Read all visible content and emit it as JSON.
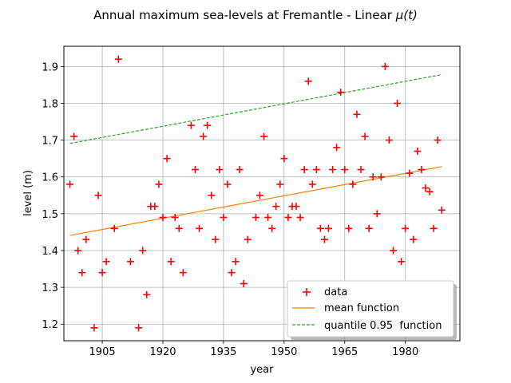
{
  "chart_data": {
    "type": "scatter",
    "title": "Annual maximum sea-levels at Fremantle - Linear",
    "title_math": "μ(t)",
    "xlabel": "year",
    "ylabel": "level (m)",
    "xlim": [
      1895.5,
      1993.5
    ],
    "ylim": [
      1.155,
      1.955
    ],
    "xticks": [
      1905,
      1920,
      1935,
      1950,
      1965,
      1980
    ],
    "yticks": [
      1.2,
      1.3,
      1.4,
      1.5,
      1.6,
      1.7,
      1.8,
      1.9
    ],
    "grid": true,
    "legend_position": "lower-right",
    "series": [
      {
        "name": "data",
        "kind": "scatter",
        "marker": "plus",
        "color": "#ff0000",
        "x": [
          1897,
          1898,
          1899,
          1900,
          1901,
          1903,
          1904,
          1905,
          1906,
          1908,
          1909,
          1912,
          1914,
          1915,
          1916,
          1917,
          1918,
          1919,
          1920,
          1921,
          1922,
          1923,
          1924,
          1925,
          1927,
          1928,
          1929,
          1930,
          1931,
          1932,
          1933,
          1934,
          1935,
          1936,
          1937,
          1938,
          1939,
          1940,
          1941,
          1943,
          1944,
          1945,
          1946,
          1947,
          1948,
          1949,
          1950,
          1951,
          1952,
          1953,
          1954,
          1955,
          1956,
          1957,
          1958,
          1959,
          1960,
          1961,
          1962,
          1963,
          1964,
          1965,
          1966,
          1967,
          1968,
          1969,
          1970,
          1971,
          1972,
          1973,
          1974,
          1975,
          1976,
          1977,
          1978,
          1979,
          1980,
          1981,
          1982,
          1983,
          1984,
          1985,
          1986,
          1987,
          1988,
          1989
        ],
        "y": [
          1.58,
          1.71,
          1.4,
          1.34,
          1.43,
          1.19,
          1.55,
          1.34,
          1.37,
          1.46,
          1.92,
          1.37,
          1.19,
          1.4,
          1.28,
          1.52,
          1.52,
          1.58,
          1.49,
          1.65,
          1.37,
          1.49,
          1.46,
          1.34,
          1.74,
          1.62,
          1.46,
          1.71,
          1.74,
          1.55,
          1.43,
          1.62,
          1.49,
          1.58,
          1.34,
          1.37,
          1.62,
          1.31,
          1.43,
          1.49,
          1.55,
          1.71,
          1.49,
          1.46,
          1.52,
          1.58,
          1.65,
          1.49,
          1.52,
          1.52,
          1.49,
          1.62,
          1.86,
          1.58,
          1.62,
          1.46,
          1.43,
          1.46,
          1.62,
          1.68,
          1.83,
          1.62,
          1.46,
          1.58,
          1.77,
          1.62,
          1.71,
          1.46,
          1.6,
          1.5,
          1.6,
          1.9,
          1.7,
          1.4,
          1.8,
          1.37,
          1.46,
          1.61,
          1.43,
          1.67,
          1.62,
          1.57,
          1.56,
          1.46,
          1.7,
          1.51
        ]
      },
      {
        "name": "mean function",
        "kind": "line",
        "style": "solid",
        "color": "#ff7f0e",
        "x": [
          1897,
          1989
        ],
        "y": [
          1.441,
          1.628
        ]
      },
      {
        "name": "quantile 0.95  function",
        "kind": "line",
        "style": "dashed",
        "color": "#2ca02c",
        "x": [
          1897,
          1989
        ],
        "y": [
          1.691,
          1.878
        ]
      }
    ]
  }
}
